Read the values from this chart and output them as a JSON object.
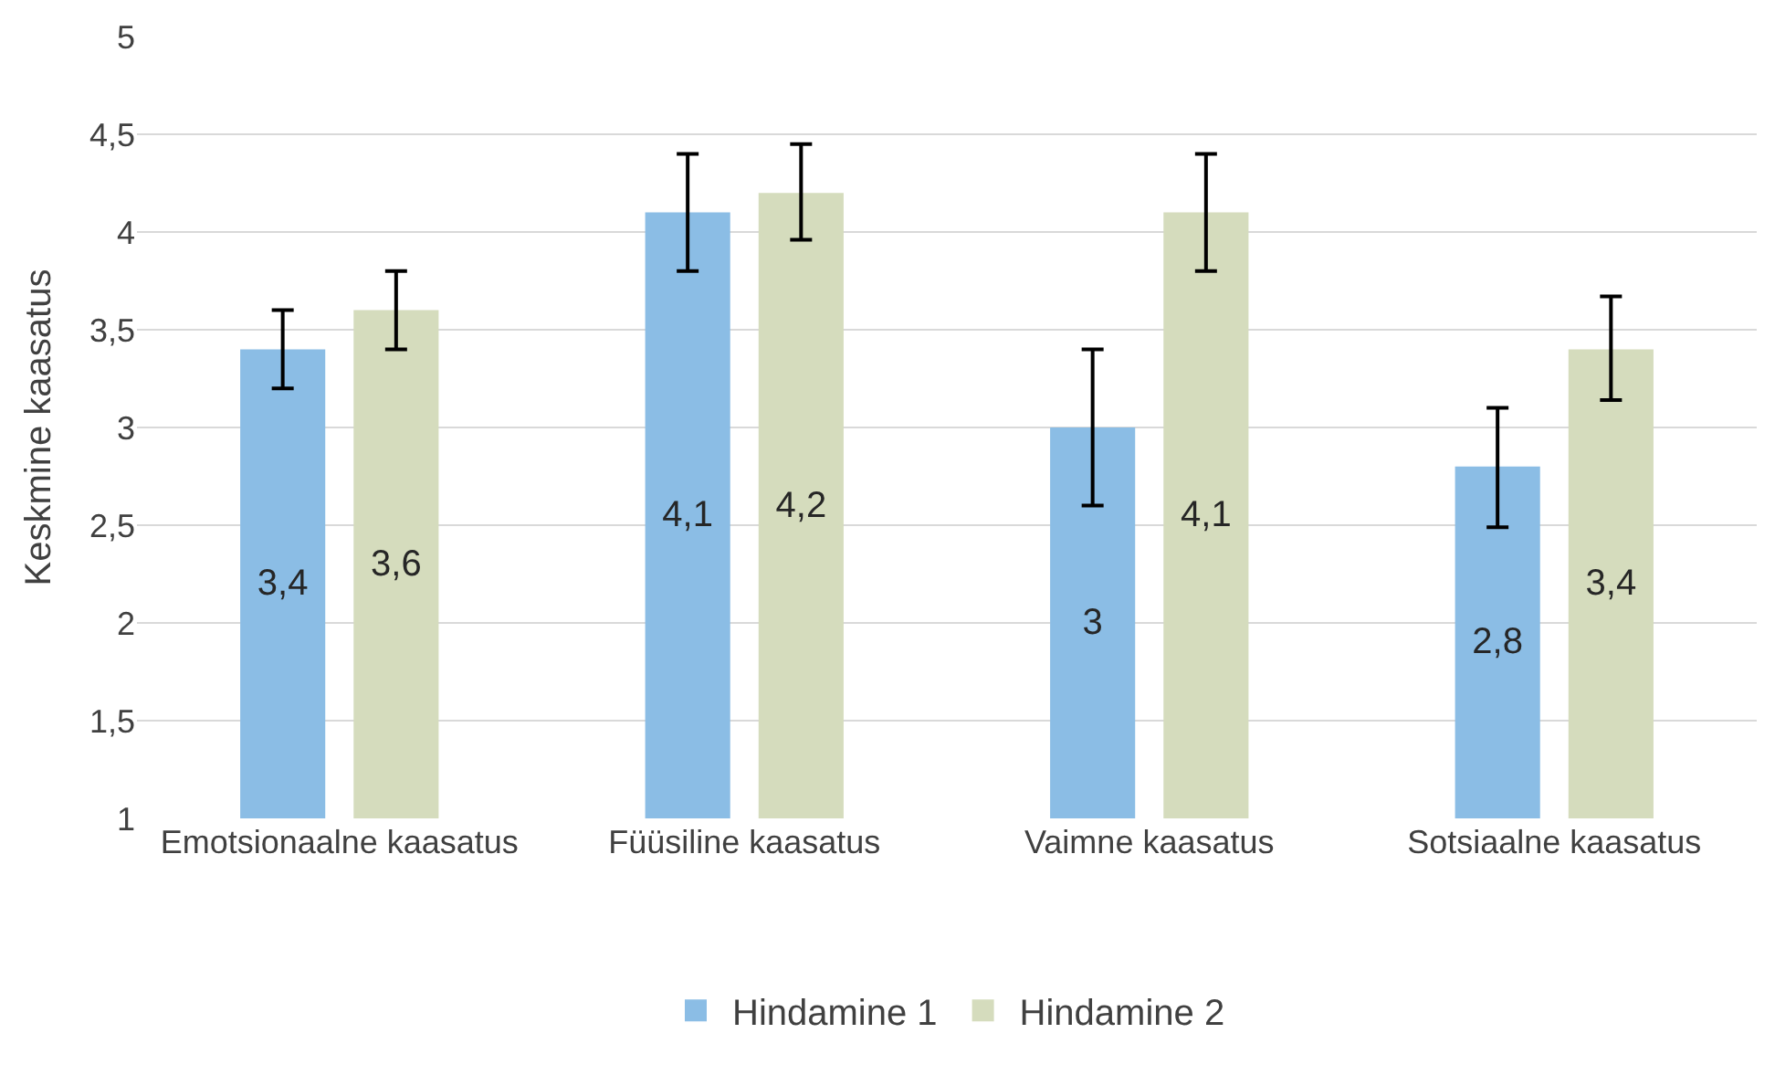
{
  "chart_data": {
    "type": "bar",
    "ylabel": "Keskmine kaasatus",
    "categories": [
      "Emotsionaalne kaasatus",
      "Füüsiline kaasatus",
      "Vaimne kaasatus",
      "Sotsiaalne kaasatus"
    ],
    "series": [
      {
        "name": "Hindamine 1",
        "color": "#8bbde5",
        "values": [
          3.4,
          4.1,
          3,
          2.8
        ],
        "value_labels": [
          "3,4",
          "4,1",
          "3",
          "2,8"
        ],
        "errors": [
          [
            3.2,
            3.6
          ],
          [
            3.8,
            4.4
          ],
          [
            2.6,
            3.4
          ],
          [
            2.49,
            3.1
          ]
        ]
      },
      {
        "name": "Hindamine 2",
        "color": "#d5dcbd",
        "values": [
          3.6,
          4.2,
          4.1,
          3.4
        ],
        "value_labels": [
          "3,6",
          "4,2",
          "4,1",
          "3,4"
        ],
        "errors": [
          [
            3.4,
            3.8
          ],
          [
            3.96,
            4.45
          ],
          [
            3.8,
            4.4
          ],
          [
            3.14,
            3.67
          ]
        ]
      }
    ],
    "ylim": [
      1,
      5
    ],
    "yticks": [
      1,
      {
        "value": 1.5,
        "label": "1,5"
      },
      2,
      {
        "value": 2.5,
        "label": "2,5"
      },
      3,
      {
        "value": 3.5,
        "label": "3,5"
      },
      4,
      {
        "value": 4.5,
        "label": "4,5"
      },
      5
    ],
    "grid": "y",
    "legend": "bottom"
  }
}
